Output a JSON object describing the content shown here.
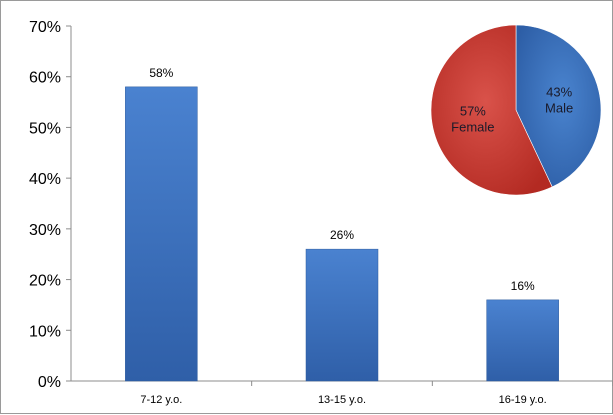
{
  "chart_data": [
    {
      "type": "bar",
      "categories": [
        "7-12 y.o.",
        "13-15 y.o.",
        "16-19 y.o."
      ],
      "values": [
        58,
        26,
        16
      ],
      "data_labels": [
        "58%",
        "26%",
        "16%"
      ],
      "y_tick_labels": [
        "0%",
        "10%",
        "20%",
        "30%",
        "40%",
        "50%",
        "60%",
        "70%"
      ],
      "ylim": [
        0,
        70
      ],
      "title": "",
      "xlabel": "",
      "ylabel": "",
      "grid": false,
      "bar_color": "#3a6fbf"
    },
    {
      "type": "pie",
      "slices": [
        {
          "label": "Male",
          "value": 43,
          "pct_label": "43%",
          "color": "#3a6fbf"
        },
        {
          "label": "Female",
          "value": 57,
          "pct_label": "57%",
          "color": "#c0392b"
        }
      ]
    }
  ]
}
